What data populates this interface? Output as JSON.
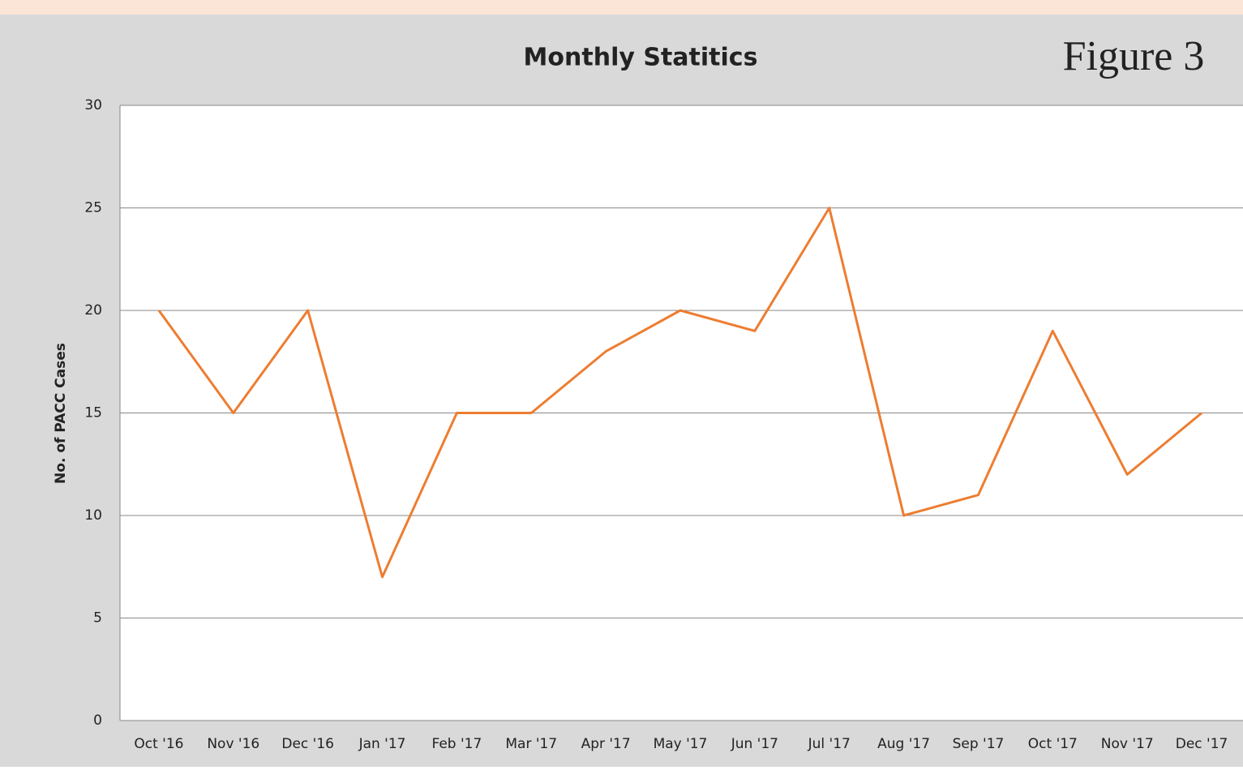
{
  "chart_data": {
    "type": "line",
    "title": "Monthly Statitics",
    "annotation": "Figure 3",
    "ylabel": "No. of PACC Cases",
    "categories": [
      "Oct '16",
      "Nov '16",
      "Dec '16",
      "Jan '17",
      "Feb '17",
      "Mar '17",
      "Apr '17",
      "May '17",
      "Jun '17",
      "Jul '17",
      "Aug '17",
      "Sep '17",
      "Oct '17",
      "Nov '17",
      "Dec '17"
    ],
    "series": [
      {
        "color": "#ed7d31",
        "values": [
          20,
          15,
          20,
          7,
          15,
          15,
          18,
          20,
          19,
          25,
          10,
          11,
          19,
          12,
          15
        ]
      }
    ],
    "ylim": [
      0,
      30
    ],
    "yticks": [
      0,
      5,
      10,
      15,
      20,
      25,
      30
    ],
    "grid": true
  }
}
